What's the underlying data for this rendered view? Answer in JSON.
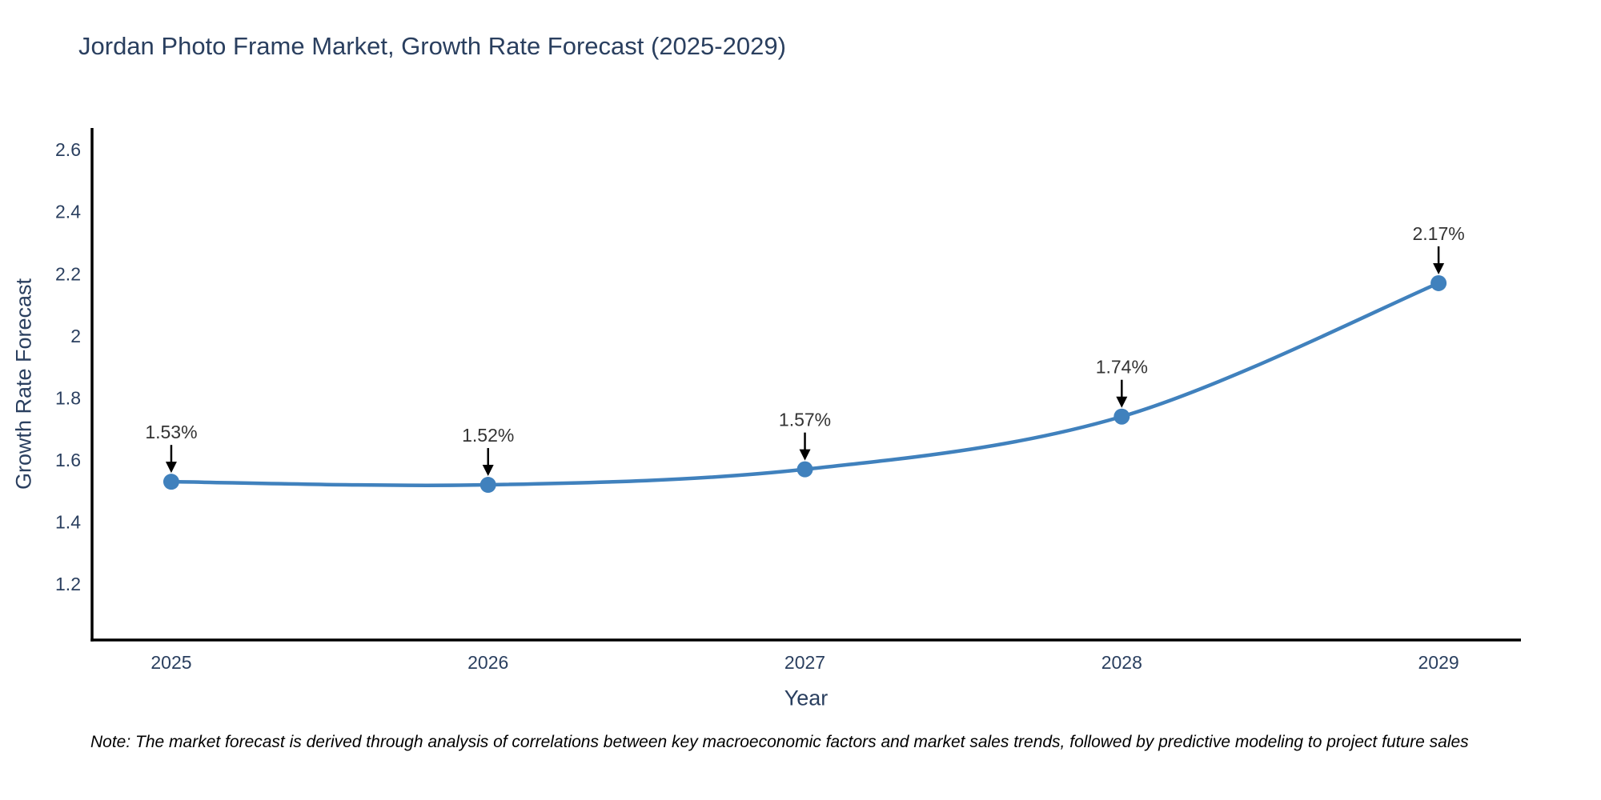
{
  "chart_data": {
    "type": "line",
    "title": "Jordan Photo Frame Market, Growth Rate Forecast (2025-2029)",
    "xlabel": "Year",
    "ylabel": "Growth Rate Forecast",
    "x": [
      2025,
      2026,
      2027,
      2028,
      2029
    ],
    "series": [
      {
        "name": "Growth Rate Forecast",
        "values": [
          1.53,
          1.52,
          1.57,
          1.74,
          2.17
        ]
      }
    ],
    "point_labels": [
      "1.53%",
      "1.52%",
      "1.57%",
      "1.74%",
      "2.17%"
    ],
    "xticks": [
      "2025",
      "2026",
      "2027",
      "2028",
      "2029"
    ],
    "ytick_labels": [
      "1.2",
      "1.4",
      "1.6",
      "1.8",
      "2",
      "2.2",
      "2.4",
      "2.6"
    ],
    "yticks": [
      1.2,
      1.4,
      1.6,
      1.8,
      2.0,
      2.2,
      2.4,
      2.6
    ],
    "ylim": [
      1.02,
      2.67
    ],
    "xlim": [
      2024.75,
      2029.26
    ],
    "line_shape": "spline",
    "grid": false,
    "legend_position": "none",
    "line_color": "#4081bd",
    "marker_color": "#4081bd",
    "axis_color": "#000000",
    "tick_color": "#2a3f5f",
    "annotation_color": "#333333",
    "arrow_color": "#000000"
  },
  "note": "Note: The market forecast is derived through analysis of correlations between key macroeconomic factors and market sales trends, followed by predictive modeling to project future sales"
}
